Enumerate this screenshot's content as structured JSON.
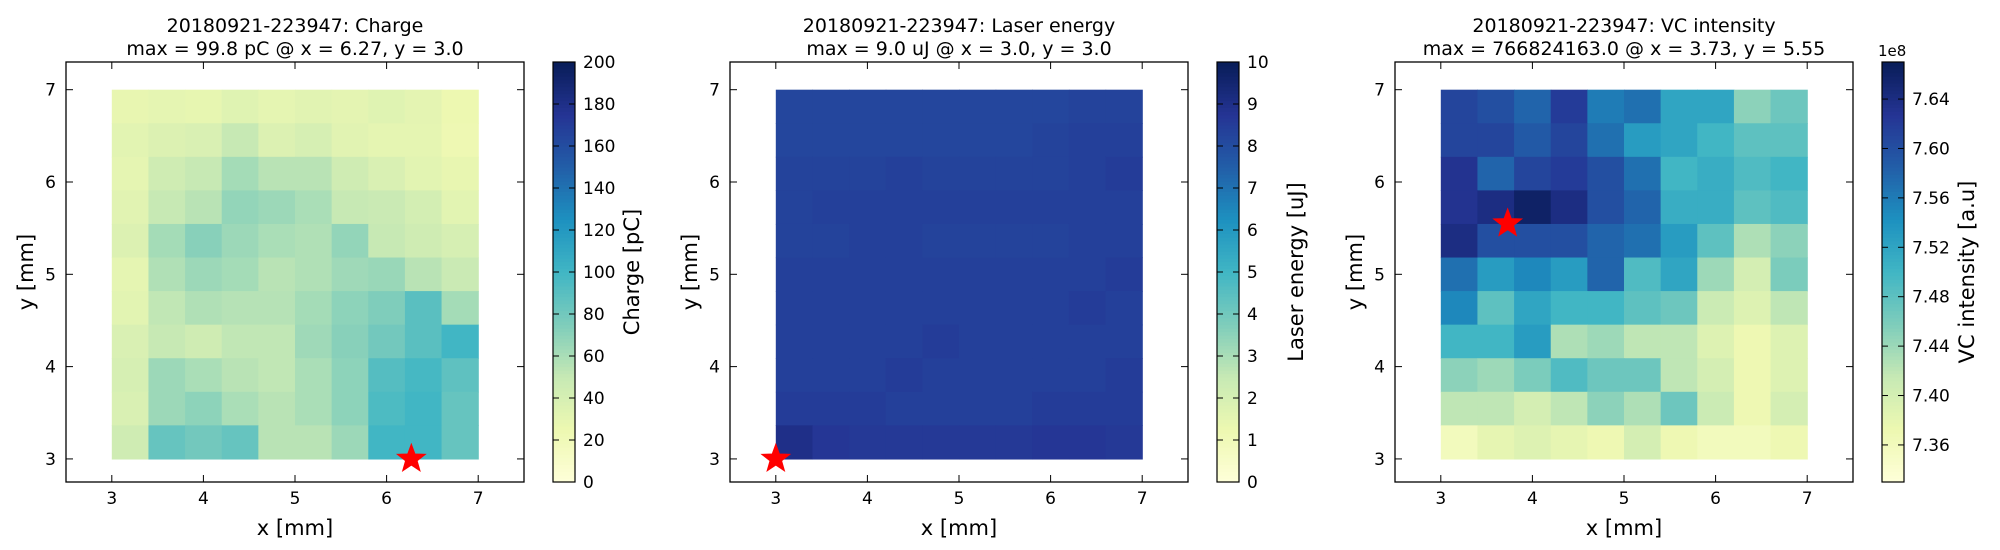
{
  "chart_data": [
    {
      "type": "heatmap",
      "title": "20180921-223947: Charge",
      "subtitle": "max = 99.8 pC @ x = 6.27, y = 3.0",
      "xlabel": "x [mm]",
      "ylabel": "y [mm]",
      "xlim": [
        2.5,
        7.5
      ],
      "ylim": [
        2.75,
        7.3
      ],
      "xticks": [
        "3",
        "4",
        "5",
        "6",
        "7"
      ],
      "yticks": [
        "3",
        "4",
        "5",
        "6",
        "7"
      ],
      "colorbar": {
        "label": "Charge [pC]",
        "min": 0,
        "max": 200,
        "ticks": [
          "0",
          "20",
          "40",
          "60",
          "80",
          "100",
          "120",
          "140",
          "160",
          "180",
          "200"
        ],
        "offset": ""
      },
      "grid": {
        "x_range": [
          3.0,
          7.0
        ],
        "y_range": [
          3.0,
          7.0
        ],
        "rows_top_to_bottom": [
          [
            28,
            30,
            29,
            34,
            30,
            33,
            31,
            34,
            31,
            25
          ],
          [
            32,
            36,
            38,
            50,
            36,
            40,
            33,
            30,
            30,
            24
          ],
          [
            30,
            45,
            50,
            62,
            55,
            55,
            45,
            38,
            32,
            28
          ],
          [
            33,
            50,
            55,
            68,
            65,
            60,
            50,
            48,
            42,
            32
          ],
          [
            36,
            62,
            72,
            65,
            60,
            58,
            68,
            50,
            45,
            40
          ],
          [
            30,
            58,
            65,
            62,
            55,
            58,
            64,
            66,
            55,
            48
          ],
          [
            32,
            52,
            58,
            56,
            56,
            62,
            70,
            75,
            90,
            62
          ],
          [
            38,
            50,
            45,
            52,
            52,
            64,
            72,
            80,
            90,
            100
          ],
          [
            40,
            65,
            60,
            55,
            52,
            60,
            70,
            92,
            98,
            88
          ],
          [
            38,
            65,
            70,
            60,
            55,
            60,
            70,
            95,
            100,
            85
          ],
          [
            45,
            85,
            80,
            85,
            55,
            55,
            65,
            100,
            100,
            85
          ]
        ]
      },
      "max_marker": {
        "x": 6.27,
        "y": 3.0
      }
    },
    {
      "type": "heatmap",
      "title": "20180921-223947: Laser energy",
      "subtitle": "max = 9.0 uJ @ x = 3.0, y = 3.0",
      "xlabel": "x [mm]",
      "ylabel": "y [mm]",
      "xlim": [
        2.5,
        7.5
      ],
      "ylim": [
        2.75,
        7.3
      ],
      "xticks": [
        "3",
        "4",
        "5",
        "6",
        "7"
      ],
      "yticks": [
        "3",
        "4",
        "5",
        "6",
        "7"
      ],
      "colorbar": {
        "label": "Laser energy [uJ]",
        "min": 0,
        "max": 10,
        "ticks": [
          "0",
          "1",
          "2",
          "3",
          "4",
          "5",
          "6",
          "7",
          "8",
          "9",
          "10"
        ],
        "offset": ""
      },
      "grid": {
        "x_range": [
          3.0,
          7.0
        ],
        "y_range": [
          3.0,
          7.0
        ],
        "rows_top_to_bottom": [
          [
            8.2,
            8.2,
            8.2,
            8.2,
            8.2,
            8.2,
            8.2,
            8.2,
            8.3,
            8.3
          ],
          [
            8.2,
            8.2,
            8.2,
            8.2,
            8.2,
            8.2,
            8.2,
            8.3,
            8.4,
            8.4
          ],
          [
            8.3,
            8.3,
            8.3,
            8.4,
            8.3,
            8.3,
            8.3,
            8.3,
            8.4,
            8.5
          ],
          [
            8.3,
            8.4,
            8.4,
            8.4,
            8.4,
            8.4,
            8.4,
            8.4,
            8.4,
            8.4
          ],
          [
            8.3,
            8.3,
            8.4,
            8.4,
            8.3,
            8.3,
            8.3,
            8.3,
            8.4,
            8.4
          ],
          [
            8.4,
            8.4,
            8.4,
            8.4,
            8.4,
            8.4,
            8.4,
            8.4,
            8.4,
            8.5
          ],
          [
            8.4,
            8.4,
            8.4,
            8.4,
            8.4,
            8.4,
            8.4,
            8.4,
            8.5,
            8.4
          ],
          [
            8.4,
            8.4,
            8.4,
            8.4,
            8.5,
            8.4,
            8.4,
            8.4,
            8.4,
            8.4
          ],
          [
            8.4,
            8.4,
            8.4,
            8.5,
            8.4,
            8.4,
            8.4,
            8.4,
            8.4,
            8.5
          ],
          [
            8.5,
            8.5,
            8.5,
            8.4,
            8.4,
            8.4,
            8.4,
            8.5,
            8.5,
            8.5
          ],
          [
            9.0,
            8.7,
            8.6,
            8.6,
            8.6,
            8.6,
            8.6,
            8.7,
            8.7,
            8.6
          ]
        ]
      },
      "max_marker": {
        "x": 3.0,
        "y": 3.0
      }
    },
    {
      "type": "heatmap",
      "title": "20180921-223947: VC intensity",
      "subtitle": "max = 766824163.0 @ x = 3.73, y = 5.55",
      "xlabel": "x [mm]",
      "ylabel": "y [mm]",
      "xlim": [
        2.5,
        7.5
      ],
      "ylim": [
        2.75,
        7.3
      ],
      "xticks": [
        "3",
        "4",
        "5",
        "6",
        "7"
      ],
      "yticks": [
        "3",
        "4",
        "5",
        "6",
        "7"
      ],
      "colorbar": {
        "label": "VC intensity [a.u]",
        "min": 7.33,
        "max": 7.67,
        "ticks": [
          "7.36",
          "7.40",
          "7.44",
          "7.48",
          "7.52",
          "7.56",
          "7.60",
          "7.64"
        ],
        "tick_values": [
          7.36,
          7.4,
          7.44,
          7.48,
          7.52,
          7.56,
          7.6,
          7.64
        ],
        "offset": "1e8"
      },
      "grid": {
        "x_range": [
          3.0,
          7.0
        ],
        "y_range": [
          3.0,
          7.0
        ],
        "rows_top_to_bottom": [
          [
            7.61,
            7.6,
            7.58,
            7.62,
            7.56,
            7.57,
            7.52,
            7.52,
            7.45,
            7.47
          ],
          [
            7.61,
            7.61,
            7.59,
            7.61,
            7.57,
            7.53,
            7.52,
            7.5,
            7.48,
            7.48
          ],
          [
            7.63,
            7.58,
            7.61,
            7.62,
            7.6,
            7.57,
            7.5,
            7.51,
            7.49,
            7.5
          ],
          [
            7.63,
            7.64,
            7.66,
            7.64,
            7.6,
            7.58,
            7.51,
            7.51,
            7.48,
            7.49
          ],
          [
            7.64,
            7.6,
            7.6,
            7.6,
            7.58,
            7.57,
            7.53,
            7.48,
            7.43,
            7.45
          ],
          [
            7.57,
            7.53,
            7.55,
            7.53,
            7.58,
            7.49,
            7.52,
            7.44,
            7.4,
            7.46
          ],
          [
            7.55,
            7.48,
            7.52,
            7.5,
            7.5,
            7.48,
            7.47,
            7.41,
            7.39,
            7.42
          ],
          [
            7.5,
            7.5,
            7.53,
            7.43,
            7.44,
            7.42,
            7.42,
            7.39,
            7.37,
            7.39
          ],
          [
            7.45,
            7.44,
            7.46,
            7.49,
            7.47,
            7.47,
            7.42,
            7.4,
            7.37,
            7.39
          ],
          [
            7.42,
            7.42,
            7.4,
            7.42,
            7.45,
            7.43,
            7.47,
            7.41,
            7.37,
            7.4
          ],
          [
            7.36,
            7.38,
            7.39,
            7.38,
            7.37,
            7.4,
            7.37,
            7.36,
            7.36,
            7.37
          ]
        ]
      },
      "max_marker": {
        "x": 3.73,
        "y": 5.55
      }
    }
  ],
  "colors": {
    "marker": "#ff0000",
    "colormap": [
      "#ffffd9",
      "#edf8b1",
      "#c7e9b4",
      "#7fcdbb",
      "#41b6c4",
      "#1d91c0",
      "#225ea8",
      "#253494",
      "#081d58"
    ]
  }
}
